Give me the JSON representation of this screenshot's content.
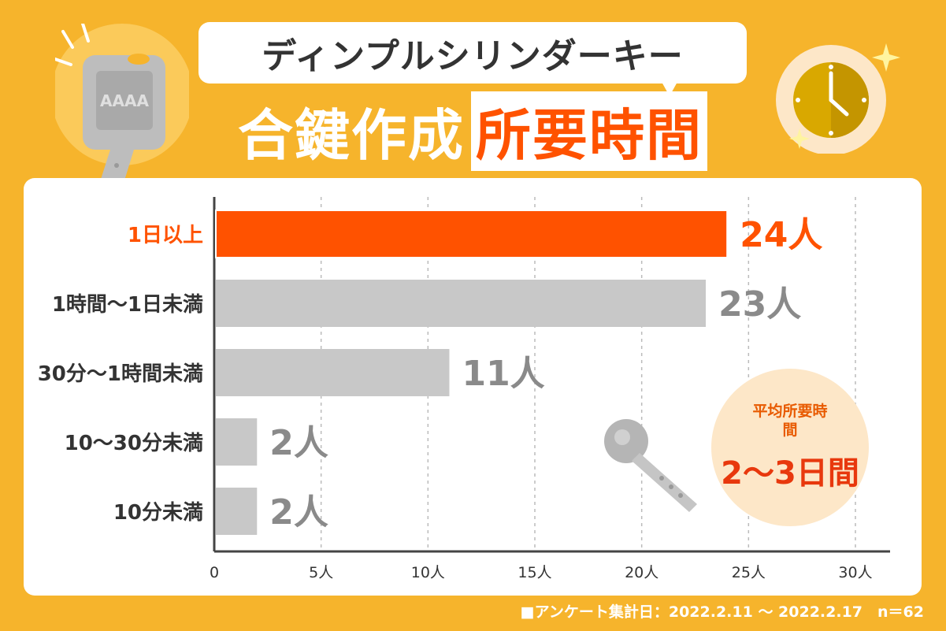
{
  "title": "ディンプルシリンダーキー",
  "headline": {
    "part1": "合鍵作成",
    "part2": "所要時間"
  },
  "key_deco_text": "AAAA",
  "average": {
    "label": "平均所要時間",
    "value": "2〜3日間"
  },
  "footer": "■アンケート集計日：2022.2.11 〜 2022.2.17　n＝62",
  "colors": {
    "background": "#F6B42C",
    "highlight": "#FF5200",
    "bar": "#C8C8C8",
    "label_gray": "#8A8A8A"
  },
  "chart_data": {
    "type": "bar",
    "orientation": "horizontal",
    "categories": [
      "1日以上",
      "1時間〜1日未満",
      "30分〜1時間未満",
      "10〜30分未満",
      "10分未満"
    ],
    "values": [
      24,
      23,
      11,
      2,
      2
    ],
    "value_labels": [
      "24人",
      "23人",
      "11人",
      "2人",
      "2人"
    ],
    "highlight_index": 0,
    "xlim": [
      0,
      30
    ],
    "xticks": [
      0,
      5,
      10,
      15,
      20,
      25,
      30
    ],
    "xtick_labels": [
      "0",
      "5人",
      "10人",
      "15人",
      "20人",
      "25人",
      "30人"
    ],
    "grid": true
  }
}
